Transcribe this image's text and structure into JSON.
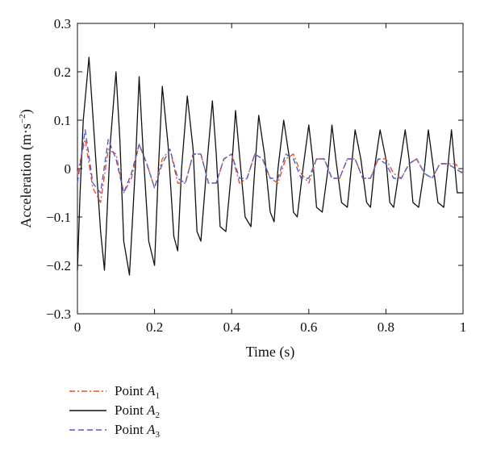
{
  "chart_data": {
    "type": "line",
    "title": "",
    "xlabel": "Time (s)",
    "ylabel_parts": [
      "Acceleration (m·s",
      "−2",
      ")"
    ],
    "xlim": [
      0,
      1
    ],
    "ylim": [
      -0.3,
      0.3
    ],
    "xticks": [
      0,
      0.2,
      0.4,
      0.6,
      0.8,
      1
    ],
    "xtick_labels": [
      "0",
      "0.2",
      "0.4",
      "0.6",
      "0.8",
      "1"
    ],
    "yticks": [
      -0.3,
      -0.2,
      -0.1,
      0,
      0.1,
      0.2,
      0.3
    ],
    "ytick_labels": [
      "−0.3",
      "−0.2",
      "−0.1",
      "0",
      "0.1",
      "0.2",
      "0.3"
    ],
    "grid": false,
    "legend_position": "below-left",
    "series": [
      {
        "name": "Point A1",
        "label_main": "Point ",
        "label_italic": "A",
        "label_sub": "1",
        "color": "#e8512a",
        "style": "dashdot",
        "x": [
          0,
          0.02,
          0.04,
          0.06,
          0.08,
          0.1,
          0.12,
          0.14,
          0.16,
          0.18,
          0.2,
          0.22,
          0.24,
          0.26,
          0.28,
          0.3,
          0.32,
          0.34,
          0.36,
          0.38,
          0.4,
          0.42,
          0.44,
          0.46,
          0.48,
          0.5,
          0.52,
          0.54,
          0.56,
          0.58,
          0.6,
          0.62,
          0.64,
          0.66,
          0.68,
          0.7,
          0.72,
          0.74,
          0.76,
          0.78,
          0.8,
          0.82,
          0.84,
          0.86,
          0.88,
          0.9,
          0.92,
          0.94,
          0.96,
          0.98,
          1
        ],
        "y": [
          -0.01,
          0.06,
          -0.04,
          -0.07,
          0.04,
          0.03,
          -0.05,
          -0.02,
          0.05,
          0.01,
          -0.04,
          0.02,
          0.04,
          -0.03,
          -0.03,
          0.03,
          0.03,
          -0.03,
          -0.03,
          0.02,
          0.03,
          -0.03,
          -0.02,
          0.03,
          0.02,
          -0.02,
          -0.03,
          0.02,
          0.03,
          -0.01,
          -0.03,
          0.02,
          0.02,
          -0.02,
          -0.02,
          0.02,
          0.02,
          -0.02,
          -0.02,
          0.02,
          0.02,
          -0.01,
          -0.02,
          0.01,
          0.02,
          -0.01,
          -0.02,
          0.01,
          0.01,
          0.01,
          -0.01
        ]
      },
      {
        "name": "Point A2",
        "label_main": "Point ",
        "label_italic": "A",
        "label_sub": "2",
        "color": "#111111",
        "style": "solid",
        "x": [
          0,
          0.007,
          0.015,
          0.022,
          0.03,
          0.045,
          0.06,
          0.07,
          0.085,
          0.1,
          0.11,
          0.12,
          0.135,
          0.15,
          0.16,
          0.17,
          0.185,
          0.2,
          0.21,
          0.22,
          0.235,
          0.25,
          0.26,
          0.27,
          0.285,
          0.3,
          0.31,
          0.32,
          0.335,
          0.35,
          0.36,
          0.37,
          0.385,
          0.4,
          0.41,
          0.42,
          0.435,
          0.45,
          0.46,
          0.47,
          0.485,
          0.5,
          0.51,
          0.52,
          0.535,
          0.55,
          0.56,
          0.57,
          0.585,
          0.6,
          0.61,
          0.62,
          0.635,
          0.65,
          0.66,
          0.67,
          0.685,
          0.7,
          0.71,
          0.72,
          0.735,
          0.75,
          0.76,
          0.77,
          0.785,
          0.8,
          0.81,
          0.82,
          0.835,
          0.85,
          0.86,
          0.87,
          0.885,
          0.9,
          0.91,
          0.92,
          0.935,
          0.95,
          0.96,
          0.97,
          0.985,
          1
        ],
        "y": [
          -0.21,
          -0.05,
          0.1,
          0.16,
          0.23,
          0.05,
          -0.13,
          -0.21,
          0.05,
          0.2,
          0.06,
          -0.15,
          -0.22,
          0.0,
          0.19,
          0.04,
          -0.15,
          -0.2,
          0.0,
          0.17,
          0.05,
          -0.14,
          -0.17,
          0.0,
          0.15,
          0.04,
          -0.13,
          -0.15,
          0.0,
          0.14,
          0.03,
          -0.12,
          -0.13,
          0.0,
          0.12,
          0.03,
          -0.1,
          -0.12,
          0.0,
          0.11,
          0.03,
          -0.09,
          -0.11,
          0.0,
          0.1,
          0.02,
          -0.09,
          -0.1,
          0.0,
          0.09,
          0.02,
          -0.08,
          -0.09,
          0.0,
          0.09,
          0.02,
          -0.07,
          -0.08,
          0.0,
          0.08,
          0.02,
          -0.07,
          -0.08,
          0.0,
          0.08,
          0.02,
          -0.07,
          -0.08,
          0.0,
          0.08,
          0.02,
          -0.07,
          -0.08,
          0.0,
          0.08,
          0.02,
          -0.07,
          -0.08,
          0.0,
          0.08,
          -0.05,
          -0.05
        ]
      },
      {
        "name": "Point A3",
        "label_main": "Point ",
        "label_italic": "A",
        "label_sub": "3",
        "color": "#4d5fcc",
        "style": "dashed",
        "x": [
          0,
          0.02,
          0.04,
          0.06,
          0.08,
          0.1,
          0.12,
          0.14,
          0.16,
          0.18,
          0.2,
          0.22,
          0.24,
          0.26,
          0.28,
          0.3,
          0.32,
          0.34,
          0.36,
          0.38,
          0.4,
          0.42,
          0.44,
          0.46,
          0.48,
          0.5,
          0.52,
          0.54,
          0.56,
          0.58,
          0.6,
          0.62,
          0.64,
          0.66,
          0.68,
          0.7,
          0.72,
          0.74,
          0.76,
          0.78,
          0.8,
          0.82,
          0.84,
          0.86,
          0.88,
          0.9,
          0.92,
          0.94,
          0.96,
          0.98,
          1
        ],
        "y": [
          -0.03,
          0.08,
          -0.03,
          -0.05,
          0.06,
          0.02,
          -0.05,
          -0.01,
          0.05,
          0.01,
          -0.04,
          0.01,
          0.04,
          -0.02,
          -0.03,
          0.03,
          0.03,
          -0.03,
          -0.03,
          0.02,
          0.03,
          -0.02,
          -0.02,
          0.03,
          0.02,
          -0.02,
          -0.02,
          0.03,
          0.02,
          -0.02,
          -0.02,
          0.02,
          0.02,
          -0.02,
          -0.02,
          0.02,
          0.02,
          -0.02,
          -0.02,
          0.02,
          0.01,
          -0.02,
          -0.02,
          0.01,
          0.02,
          -0.01,
          -0.02,
          0.01,
          0.01,
          0.0,
          -0.01
        ]
      }
    ]
  }
}
